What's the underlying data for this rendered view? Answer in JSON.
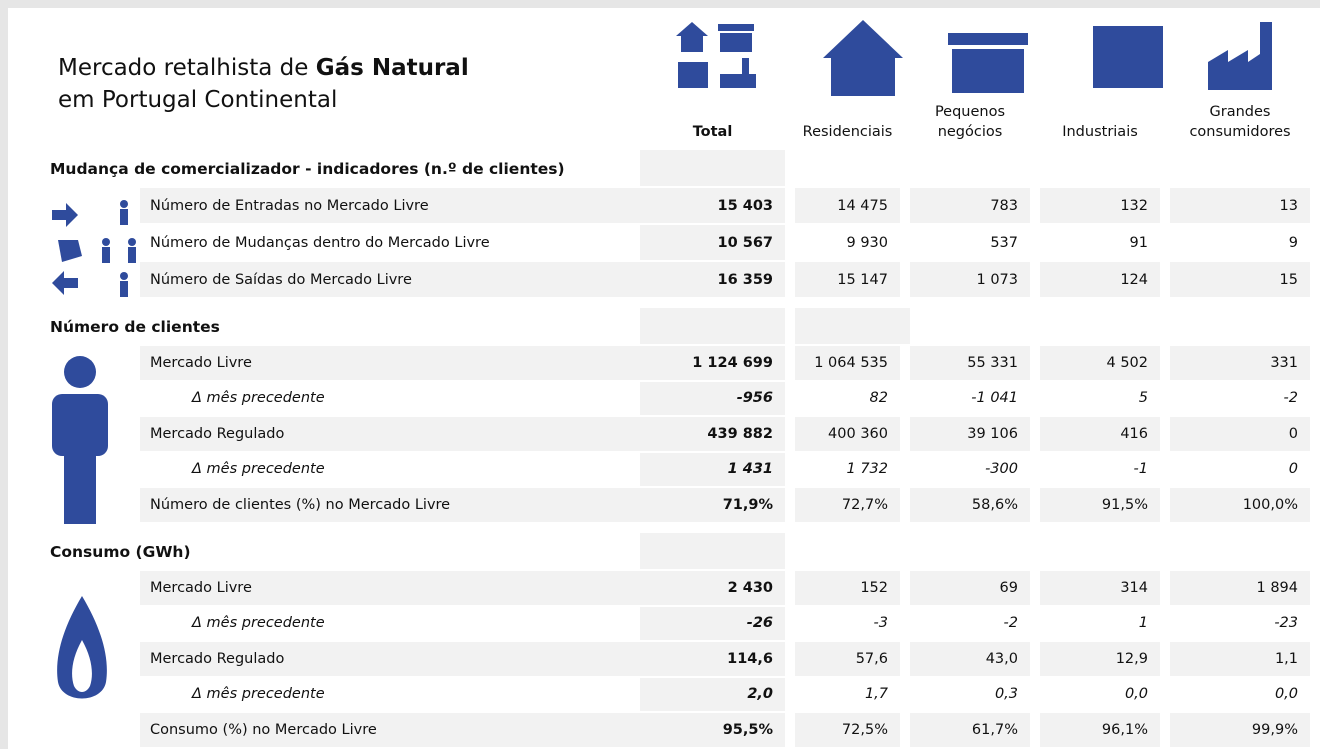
{
  "header": {
    "title_prefix": "Mercado retalhista de ",
    "title_bold": "Gás Natural",
    "title_line2": "em Portugal Continental"
  },
  "columns": [
    [
      "Total"
    ],
    [
      "Residenciais"
    ],
    [
      "Pequenos",
      "negócios"
    ],
    [
      "Industriais"
    ],
    [
      "Grandes",
      "consumidores"
    ]
  ],
  "sections": [
    {
      "title": "Mudança de comercializador - indicadores (n.º de clientes)",
      "rows": [
        {
          "label": "Número de Entradas no Mercado Livre",
          "values": [
            "15 403",
            "14 475",
            "783",
            "132",
            "13"
          ]
        },
        {
          "label": "Número de Mudanças dentro do Mercado Livre",
          "values": [
            "10 567",
            "9 930",
            "537",
            "91",
            "9"
          ]
        },
        {
          "label": "Número de Saídas do Mercado Livre",
          "values": [
            "16 359",
            "15 147",
            "1 073",
            "124",
            "15"
          ]
        }
      ]
    },
    {
      "title": "Número de clientes",
      "rows": [
        {
          "label": "Mercado Livre",
          "values": [
            "1 124 699",
            "1 064 535",
            "55 331",
            "4 502",
            "331"
          ]
        },
        {
          "label": "Δ mês precedente",
          "italic": true,
          "values": [
            "-956",
            "82",
            "-1 041",
            "5",
            "-2"
          ]
        },
        {
          "label": "Mercado Regulado",
          "values": [
            "439 882",
            "400 360",
            "39 106",
            "416",
            "0"
          ]
        },
        {
          "label": "Δ mês precedente",
          "italic": true,
          "values": [
            "1 431",
            "1 732",
            "-300",
            "-1",
            "0"
          ]
        },
        {
          "label": "Número de clientes (%) no Mercado Livre",
          "values": [
            "71,9%",
            "72,7%",
            "58,6%",
            "91,5%",
            "100,0%"
          ]
        }
      ]
    },
    {
      "title": "Consumo (GWh)",
      "rows": [
        {
          "label": "Mercado Livre",
          "values": [
            "2 430",
            "152",
            "69",
            "314",
            "1 894"
          ]
        },
        {
          "label": "Δ mês precedente",
          "italic": true,
          "values": [
            "-26",
            "-3",
            "-2",
            "1",
            "-23"
          ]
        },
        {
          "label": "Mercado Regulado",
          "values": [
            "114,6",
            "57,6",
            "43,0",
            "12,9",
            "1,1"
          ]
        },
        {
          "label": "Δ mês precedente",
          "italic": true,
          "values": [
            "2,0",
            "1,7",
            "0,3",
            "0,0",
            "0,0"
          ]
        },
        {
          "label": "Consumo (%) no Mercado Livre",
          "values": [
            "95,5%",
            "72,5%",
            "61,7%",
            "96,1%",
            "99,9%"
          ]
        }
      ]
    }
  ]
}
